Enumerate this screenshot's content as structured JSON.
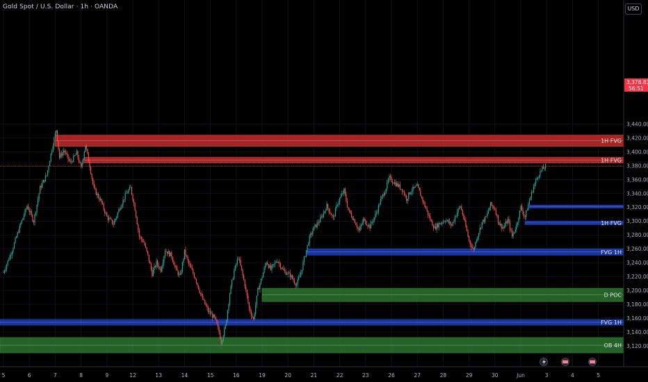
{
  "header": {
    "title": "Gold Spot / U.S. Dollar · 1h · OANDA",
    "currency": "USD"
  },
  "chart_data": {
    "type": "candlestick",
    "symbol": "Gold Spot / U.S. Dollar",
    "timeframe": "1h",
    "source": "OANDA",
    "ylim": [
      3110,
      3446
    ],
    "y_ticks": [
      3120,
      3140,
      3160,
      3180,
      3200,
      3220,
      3240,
      3260,
      3280,
      3300,
      3320,
      3340,
      3360,
      3380,
      3400,
      3420,
      3440
    ],
    "y_tick_labels": [
      "3,120.000",
      "3,140.000",
      "3,160.000",
      "3,180.000",
      "3,200.000",
      "3,220.000",
      "3,240.000",
      "3,260.000",
      "3,280.000",
      "3,300.000",
      "3,320.000",
      "3,340.000",
      "3,360.000",
      "3,380.000",
      "3,400.000",
      "3,420.000",
      "3,440.000"
    ],
    "x_tick_labels": [
      "5",
      "6",
      "7",
      "8",
      "9",
      "12",
      "13",
      "14",
      "15",
      "16",
      "19",
      "20",
      "21",
      "22",
      "23",
      "26",
      "27",
      "28",
      "29",
      "30",
      "Jun",
      "3",
      "4",
      "5"
    ],
    "x_tick_index": [
      0,
      24,
      48,
      72,
      96,
      120,
      144,
      168,
      192,
      216,
      240,
      264,
      288,
      312,
      336,
      360,
      384,
      408,
      432,
      456,
      480,
      504,
      528,
      552
    ],
    "current_price": 3378.835,
    "current_price_label": "3,378.835",
    "countdown_label": "56:51",
    "colors": {
      "up": "#26a69a",
      "down": "#ef5350",
      "background": "#000000"
    },
    "price_path": [
      [
        0,
        3226
      ],
      [
        8,
        3258
      ],
      [
        16,
        3296
      ],
      [
        22,
        3322
      ],
      [
        28,
        3300
      ],
      [
        34,
        3348
      ],
      [
        40,
        3366
      ],
      [
        46,
        3412
      ],
      [
        49,
        3432
      ],
      [
        52,
        3392
      ],
      [
        56,
        3402
      ],
      [
        62,
        3384
      ],
      [
        68,
        3398
      ],
      [
        72,
        3376
      ],
      [
        76,
        3410
      ],
      [
        80,
        3380
      ],
      [
        84,
        3346
      ],
      [
        90,
        3330
      ],
      [
        96,
        3306
      ],
      [
        102,
        3296
      ],
      [
        108,
        3320
      ],
      [
        114,
        3340
      ],
      [
        118,
        3348
      ],
      [
        122,
        3318
      ],
      [
        126,
        3278
      ],
      [
        130,
        3270
      ],
      [
        134,
        3250
      ],
      [
        138,
        3224
      ],
      [
        142,
        3240
      ],
      [
        146,
        3230
      ],
      [
        150,
        3258
      ],
      [
        156,
        3250
      ],
      [
        160,
        3230
      ],
      [
        164,
        3220
      ],
      [
        168,
        3256
      ],
      [
        172,
        3238
      ],
      [
        178,
        3218
      ],
      [
        184,
        3190
      ],
      [
        190,
        3170
      ],
      [
        196,
        3160
      ],
      [
        200,
        3140
      ],
      [
        202,
        3126
      ],
      [
        206,
        3148
      ],
      [
        210,
        3196
      ],
      [
        214,
        3228
      ],
      [
        218,
        3248
      ],
      [
        224,
        3208
      ],
      [
        228,
        3174
      ],
      [
        232,
        3158
      ],
      [
        236,
        3200
      ],
      [
        240,
        3220
      ],
      [
        244,
        3242
      ],
      [
        248,
        3230
      ],
      [
        254,
        3244
      ],
      [
        260,
        3228
      ],
      [
        266,
        3222
      ],
      [
        272,
        3208
      ],
      [
        276,
        3226
      ],
      [
        280,
        3252
      ],
      [
        284,
        3276
      ],
      [
        288,
        3290
      ],
      [
        294,
        3302
      ],
      [
        300,
        3322
      ],
      [
        306,
        3304
      ],
      [
        310,
        3326
      ],
      [
        316,
        3344
      ],
      [
        320,
        3316
      ],
      [
        326,
        3300
      ],
      [
        330,
        3286
      ],
      [
        334,
        3302
      ],
      [
        340,
        3292
      ],
      [
        346,
        3312
      ],
      [
        350,
        3330
      ],
      [
        354,
        3344
      ],
      [
        358,
        3362
      ],
      [
        364,
        3354
      ],
      [
        370,
        3346
      ],
      [
        374,
        3332
      ],
      [
        378,
        3344
      ],
      [
        384,
        3350
      ],
      [
        390,
        3326
      ],
      [
        396,
        3302
      ],
      [
        400,
        3290
      ],
      [
        404,
        3296
      ],
      [
        410,
        3302
      ],
      [
        416,
        3294
      ],
      [
        420,
        3310
      ],
      [
        424,
        3322
      ],
      [
        428,
        3298
      ],
      [
        432,
        3272
      ],
      [
        436,
        3258
      ],
      [
        440,
        3280
      ],
      [
        444,
        3298
      ],
      [
        448,
        3306
      ],
      [
        452,
        3324
      ],
      [
        456,
        3318
      ],
      [
        460,
        3296
      ],
      [
        464,
        3290
      ],
      [
        468,
        3302
      ],
      [
        472,
        3278
      ],
      [
        476,
        3294
      ],
      [
        480,
        3320
      ],
      [
        484,
        3306
      ],
      [
        488,
        3330
      ],
      [
        492,
        3350
      ],
      [
        496,
        3366
      ],
      [
        500,
        3375
      ],
      [
        503,
        3379
      ]
    ],
    "zones": [
      {
        "label": "1H FVG",
        "type": "bearish",
        "low": 3408,
        "high": 3424,
        "color": "#d32f2f"
      },
      {
        "label": "1H FVG",
        "type": "bearish",
        "low": 3384,
        "high": 3392,
        "color": "#d32f2f"
      },
      {
        "label": "",
        "type": "bullish",
        "low": 3319,
        "high": 3323,
        "color": "#1e40c8"
      },
      {
        "label": "1H FVG",
        "type": "bullish",
        "low": 3295,
        "high": 3300,
        "color": "#1e40c8"
      },
      {
        "label": "FVG 1H",
        "type": "bullish",
        "low": 3251,
        "high": 3260,
        "color": "#1e40c8"
      },
      {
        "label": "D POC",
        "type": "value",
        "low": 3184,
        "high": 3203,
        "color": "#2e7d32"
      },
      {
        "label": "FVG 1H",
        "type": "bullish",
        "low": 3150,
        "high": 3158,
        "color": "#1e40c8"
      },
      {
        "label": "OB 4H",
        "type": "orderblock",
        "low": 3110,
        "high": 3132,
        "color": "#2e7d32"
      }
    ]
  }
}
